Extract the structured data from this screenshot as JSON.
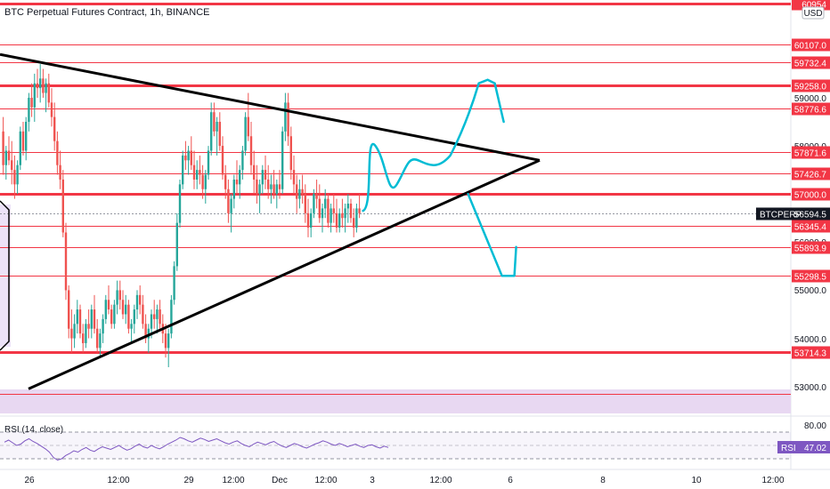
{
  "header": {
    "symbol_title": "BTC Perpetual Futures Contract, 1h, BINANCE",
    "currency": "USD"
  },
  "chart_data": {
    "type": "candlestick",
    "title": "BTC Perpetual Futures Contract, 1h, BINANCE",
    "price_range": [
      52400,
      61000
    ],
    "time_labels": [
      "26",
      "12:00",
      "29",
      "12:00",
      "Dec",
      "12:00",
      "3",
      "12:00",
      "6",
      "8",
      "10",
      "12:00"
    ],
    "price_ticks": [
      "59000.0",
      "58000.0",
      "56000.0",
      "55000.0",
      "54000.0",
      "53000.0"
    ],
    "horizontal_levels": [
      {
        "label": "60954",
        "value": 60954,
        "weight": "heavy"
      },
      {
        "label": "60107.0",
        "value": 60107,
        "weight": "thin"
      },
      {
        "label": "59732.4",
        "value": 59732.4,
        "weight": "thin"
      },
      {
        "label": "59258.0",
        "value": 59258,
        "weight": "heavy"
      },
      {
        "label": "58776.6",
        "value": 58776.6,
        "weight": "thin"
      },
      {
        "label": "57871.6",
        "value": 57871.6,
        "weight": "thin"
      },
      {
        "label": "57426.7",
        "value": 57426.7,
        "weight": "thin"
      },
      {
        "label": "57000.0",
        "value": 57000,
        "weight": "heavy"
      },
      {
        "label": "56345.4",
        "value": 56345.4,
        "weight": "thin"
      },
      {
        "label": "55893.9",
        "value": 55893.9,
        "weight": "thin"
      },
      {
        "label": "55298.5",
        "value": 55298.5,
        "weight": "thin"
      },
      {
        "label": "53714.3",
        "value": 53714.3,
        "weight": "heavy"
      },
      {
        "label": "",
        "value": 52850,
        "weight": "thin"
      }
    ],
    "current_price": {
      "symbol": "BTCPERP",
      "value": "56594.5"
    },
    "candles": [
      [
        58300,
        58600,
        57400,
        57600
      ],
      [
        57600,
        58000,
        57300,
        57900
      ],
      [
        57900,
        58200,
        57600,
        57700
      ],
      [
        57700,
        58100,
        57200,
        57500
      ],
      [
        57500,
        57800,
        56900,
        57200
      ],
      [
        57200,
        57700,
        57000,
        57600
      ],
      [
        57600,
        58400,
        57500,
        58300
      ],
      [
        58300,
        58500,
        57800,
        57900
      ],
      [
        57900,
        58600,
        57700,
        58500
      ],
      [
        58500,
        59100,
        58300,
        59000
      ],
      [
        59000,
        59300,
        58600,
        58800
      ],
      [
        58800,
        59500,
        58500,
        59300
      ],
      [
        59300,
        59600,
        59000,
        59200
      ],
      [
        59200,
        59700,
        58900,
        59400
      ],
      [
        59400,
        59600,
        59000,
        59100
      ],
      [
        59100,
        59400,
        58700,
        59300
      ],
      [
        59300,
        59500,
        58800,
        58900
      ],
      [
        58900,
        59200,
        58400,
        58600
      ],
      [
        58600,
        58900,
        57900,
        58100
      ],
      [
        58100,
        58300,
        57400,
        57600
      ],
      [
        57600,
        57900,
        57100,
        57300
      ],
      [
        57300,
        57500,
        56100,
        56200
      ],
      [
        56200,
        56400,
        54800,
        55000
      ],
      [
        55000,
        55100,
        54000,
        54200
      ],
      [
        54200,
        54600,
        53700,
        54000
      ],
      [
        54000,
        54500,
        53800,
        54300
      ],
      [
        54300,
        54800,
        54100,
        54600
      ],
      [
        54600,
        54700,
        54000,
        54100
      ],
      [
        54100,
        54300,
        53700,
        53900
      ],
      [
        53900,
        54400,
        53800,
        54300
      ],
      [
        54300,
        54600,
        54000,
        54200
      ],
      [
        54200,
        54700,
        54000,
        54600
      ],
      [
        54600,
        54900,
        54100,
        54200
      ],
      [
        54200,
        54400,
        53700,
        53800
      ],
      [
        53800,
        54200,
        53600,
        54100
      ],
      [
        54100,
        54500,
        53900,
        54400
      ],
      [
        54400,
        54900,
        54300,
        54800
      ],
      [
        54800,
        55100,
        54500,
        54600
      ],
      [
        54600,
        54700,
        54200,
        54300
      ],
      [
        54300,
        54800,
        54200,
        54700
      ],
      [
        54700,
        55200,
        54500,
        55000
      ],
      [
        55000,
        55200,
        54600,
        54800
      ],
      [
        54800,
        55000,
        54400,
        54500
      ],
      [
        54500,
        54900,
        54300,
        54700
      ],
      [
        54700,
        54800,
        54100,
        54200
      ],
      [
        54200,
        54400,
        53900,
        54300
      ],
      [
        54300,
        54700,
        54100,
        54600
      ],
      [
        54600,
        55000,
        54400,
        54900
      ],
      [
        54900,
        55100,
        54500,
        54700
      ],
      [
        54700,
        54900,
        54200,
        54300
      ],
      [
        54300,
        54500,
        53900,
        54000
      ],
      [
        54000,
        54300,
        53700,
        54200
      ],
      [
        54200,
        54600,
        54000,
        54500
      ],
      [
        54500,
        54800,
        54200,
        54400
      ],
      [
        54400,
        54700,
        54100,
        54600
      ],
      [
        54600,
        54800,
        54200,
        54300
      ],
      [
        54300,
        54500,
        53900,
        54100
      ],
      [
        54100,
        54300,
        53600,
        53800
      ],
      [
        53800,
        54200,
        53400,
        54100
      ],
      [
        54100,
        54900,
        54000,
        54800
      ],
      [
        54800,
        55600,
        54700,
        55500
      ],
      [
        55500,
        56600,
        55400,
        56400
      ],
      [
        56400,
        57300,
        56300,
        57200
      ],
      [
        57200,
        57900,
        57100,
        57800
      ],
      [
        57800,
        58100,
        57500,
        57700
      ],
      [
        57700,
        58000,
        57400,
        57900
      ],
      [
        57900,
        58200,
        57500,
        57600
      ],
      [
        57600,
        57900,
        57100,
        57300
      ],
      [
        57300,
        57700,
        57100,
        57500
      ],
      [
        57500,
        57800,
        57200,
        57400
      ],
      [
        57400,
        57600,
        56900,
        57100
      ],
      [
        57100,
        57500,
        56800,
        57400
      ],
      [
        57400,
        58000,
        57300,
        57900
      ],
      [
        57900,
        58900,
        57800,
        58700
      ],
      [
        58700,
        58900,
        58200,
        58300
      ],
      [
        58300,
        58600,
        57800,
        58500
      ],
      [
        58500,
        58700,
        57900,
        58000
      ],
      [
        58000,
        58200,
        57300,
        57400
      ],
      [
        57400,
        57600,
        56900,
        57100
      ],
      [
        57100,
        57300,
        56400,
        56600
      ],
      [
        56600,
        57000,
        56200,
        56900
      ],
      [
        56900,
        57400,
        56700,
        57300
      ],
      [
        57300,
        57700,
        57000,
        57200
      ],
      [
        57200,
        57600,
        56900,
        57500
      ],
      [
        57500,
        58000,
        57300,
        57900
      ],
      [
        57900,
        58700,
        57800,
        58600
      ],
      [
        58600,
        59100,
        58100,
        58200
      ],
      [
        58200,
        58500,
        57400,
        57600
      ],
      [
        57600,
        57900,
        57000,
        57300
      ],
      [
        57300,
        57600,
        56800,
        57000
      ],
      [
        57000,
        57300,
        56600,
        57200
      ],
      [
        57200,
        57600,
        57000,
        57500
      ],
      [
        57500,
        57800,
        57100,
        57300
      ],
      [
        57300,
        57600,
        56900,
        57100
      ],
      [
        57100,
        57400,
        56800,
        57200
      ],
      [
        57200,
        57500,
        56900,
        57000
      ],
      [
        57000,
        57300,
        56700,
        57200
      ],
      [
        57200,
        57500,
        56900,
        57100
      ],
      [
        57100,
        58400,
        57000,
        58300
      ],
      [
        58300,
        59100,
        58100,
        58900
      ],
      [
        58900,
        59100,
        58000,
        58200
      ],
      [
        58200,
        58400,
        57300,
        57500
      ],
      [
        57500,
        57800,
        57000,
        57200
      ],
      [
        57200,
        57400,
        56600,
        56900
      ],
      [
        56900,
        57300,
        56700,
        57100
      ],
      [
        57100,
        57400,
        56800,
        57000
      ],
      [
        57000,
        57200,
        56400,
        56600
      ],
      [
        56600,
        56900,
        56100,
        56300
      ],
      [
        56300,
        56700,
        56100,
        56600
      ],
      [
        56600,
        57100,
        56500,
        57000
      ],
      [
        57000,
        57300,
        56700,
        56900
      ],
      [
        56900,
        57200,
        56400,
        56500
      ],
      [
        56500,
        56800,
        56200,
        56700
      ],
      [
        56700,
        57100,
        56500,
        56900
      ],
      [
        56900,
        57000,
        56300,
        56400
      ],
      [
        56400,
        56800,
        56200,
        56700
      ],
      [
        56700,
        57000,
        56400,
        56600
      ],
      [
        56600,
        56900,
        56200,
        56300
      ],
      [
        56300,
        56700,
        56200,
        56600
      ],
      [
        56600,
        56900,
        56300,
        56500
      ],
      [
        56500,
        56800,
        56200,
        56700
      ],
      [
        56700,
        57000,
        56400,
        56800
      ],
      [
        56800,
        56900,
        56400,
        56500
      ],
      [
        56500,
        56700,
        56100,
        56300
      ],
      [
        56300,
        56800,
        56200,
        56700
      ],
      [
        56700,
        57000,
        56500,
        56600
      ]
    ],
    "rsi": {
      "label": "RSI (14, close)",
      "current": "47.02",
      "tag": "RSI",
      "levels": [
        "80.00"
      ],
      "values": [
        55,
        58,
        54,
        50,
        52,
        57,
        60,
        56,
        53,
        49,
        45,
        40,
        32,
        28,
        30,
        35,
        38,
        42,
        40,
        44,
        47,
        43,
        41,
        45,
        48,
        46,
        44,
        47,
        50,
        46,
        43,
        45,
        49,
        52,
        48,
        46,
        50,
        47,
        45,
        48,
        52,
        55,
        58,
        62,
        60,
        57,
        55,
        58,
        61,
        59,
        56,
        58,
        60,
        57,
        54,
        52,
        55,
        57,
        53,
        50,
        48,
        52,
        55,
        53,
        51,
        54,
        56,
        52,
        49,
        47,
        50,
        53,
        51,
        48,
        46,
        49,
        52,
        54,
        57,
        55,
        52,
        50,
        53,
        51,
        48,
        50,
        52,
        49,
        47,
        50,
        51,
        48,
        46,
        49,
        47
      ]
    },
    "drawings": {
      "triangle_upper": {
        "from": [
          0,
          59900
        ],
        "to": [
          135,
          57700
        ]
      },
      "triangle_lower": {
        "from": [
          2,
          52950
        ],
        "to": [
          135,
          57700
        ]
      },
      "scenario_up_peak": 59300,
      "scenario_down_low": 55300
    }
  }
}
